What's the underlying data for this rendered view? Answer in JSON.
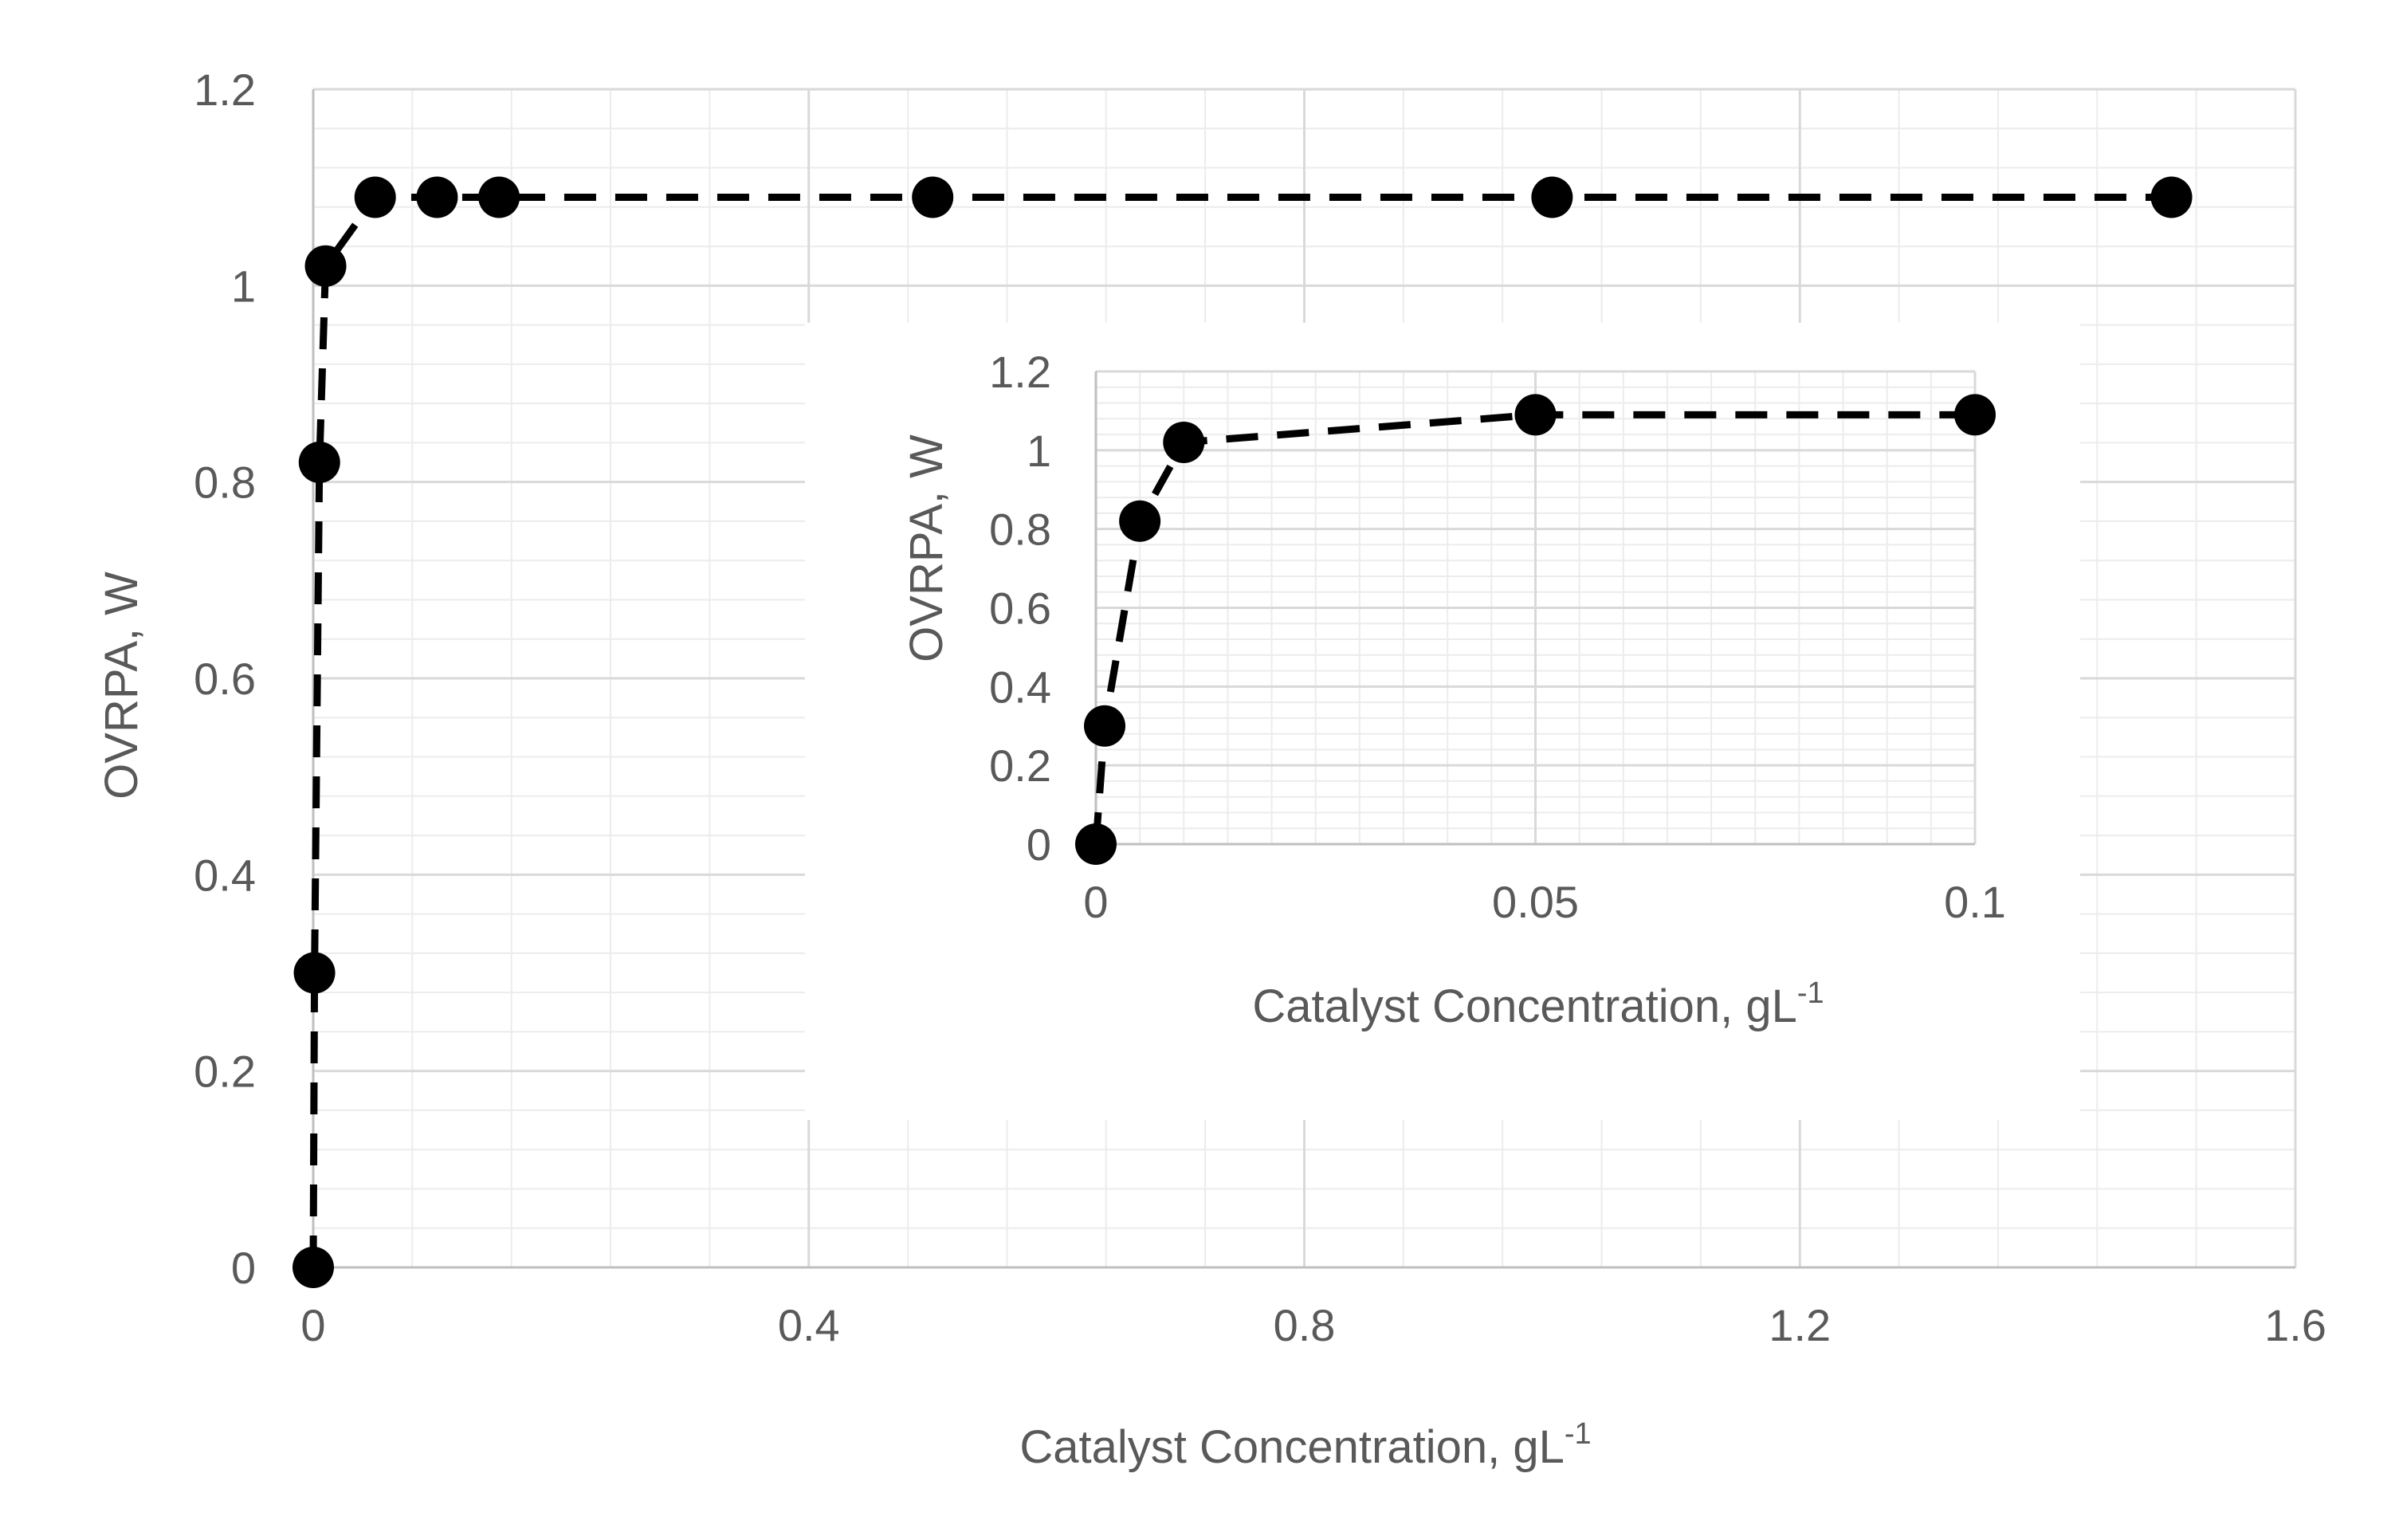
{
  "chart_data": [
    {
      "type": "line",
      "name": "main",
      "x": [
        0,
        0.001,
        0.005,
        0.01,
        0.05,
        0.1,
        0.15,
        0.5,
        1.0,
        1.5
      ],
      "y": [
        0,
        0.3,
        0.82,
        1.02,
        1.09,
        1.09,
        1.09,
        1.09,
        1.09,
        1.09
      ],
      "xlabel": "Catalyst Concentration, gL",
      "xlabel_sup": "-1",
      "ylabel": "OVRPA, W",
      "xlim": [
        0,
        1.6
      ],
      "ylim": [
        0,
        1.2
      ],
      "xticks": [
        "0",
        "0.4",
        "0.8",
        "1.2",
        "1.6"
      ],
      "yticks": [
        "0",
        "0.2",
        "0.4",
        "0.6",
        "0.8",
        "1",
        "1.2"
      ],
      "grid": true,
      "line_style": "dashed",
      "marker": "filled-circle"
    },
    {
      "type": "line",
      "name": "inset",
      "x": [
        0,
        0.001,
        0.005,
        0.01,
        0.05,
        0.1
      ],
      "y": [
        0,
        0.3,
        0.82,
        1.02,
        1.09,
        1.09
      ],
      "xlabel": "Catalyst Concentration, gL",
      "xlabel_sup": "-1",
      "ylabel": "OVRPA, W",
      "xlim": [
        0,
        0.1
      ],
      "ylim": [
        0,
        1.2
      ],
      "xticks": [
        "0",
        "0.05",
        "0.1"
      ],
      "yticks": [
        "0",
        "0.2",
        "0.4",
        "0.6",
        "0.8",
        "1",
        "1.2"
      ],
      "grid": true,
      "line_style": "dashed",
      "marker": "filled-circle"
    }
  ],
  "colors": {
    "series": "#000000",
    "grid_major": "#d9d9d9",
    "grid_minor": "#ececec",
    "text": "#595959"
  }
}
